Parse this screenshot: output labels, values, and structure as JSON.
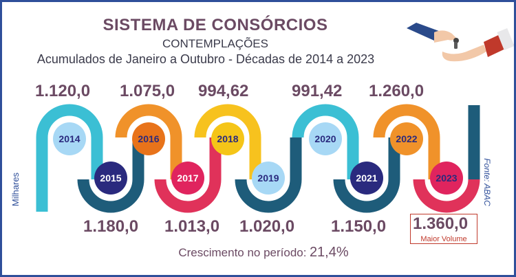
{
  "title": "SISTEMA DE CONSÓRCIOS",
  "subtitle": "CONTEMPLAÇÕES",
  "subtitle2": "Acumulados de Janeiro a Outubro - Décadas de 2014 a 2023",
  "ylabel": "Milhares",
  "source": "Fonte: ABAC",
  "growth_label": "Crescimento no período:",
  "growth_value": "21,4%",
  "max_label": "Maior Volume",
  "chart_data": {
    "type": "line",
    "title": "SISTEMA DE CONSÓRCIOS",
    "ylabel": "Milhares",
    "categories": [
      "2014",
      "2015",
      "2016",
      "2017",
      "2018",
      "2019",
      "2020",
      "2021",
      "2022",
      "2023"
    ],
    "values": [
      1120.0,
      1180.0,
      1075.0,
      1013.0,
      994.62,
      1020.0,
      991.42,
      1150.0,
      1260.0,
      1360.0
    ],
    "labels": [
      "1.120,0",
      "1.180,0",
      "1.075,0",
      "1.013,0",
      "994,62",
      "1.020,0",
      "991,42",
      "1.150,0",
      "1.260,0",
      "1.360,0"
    ],
    "colors": [
      "#3bbfd4",
      "#1e5c7a",
      "#f0922a",
      "#e0325a",
      "#f7c21e",
      "#1e5c7a",
      "#3bbfd4",
      "#1e5c7a",
      "#f0922a",
      "#e0325a"
    ],
    "circle_colors": [
      "#a7d8f5",
      "#2a2a7e",
      "#e8731a",
      "#e0245e",
      "#f5c518",
      "#a7d8f5",
      "#a7d8f5",
      "#2a2a7e",
      "#f0922a",
      "#e0245e"
    ],
    "year_text_colors": [
      "#2a2a7e",
      "#ffffff",
      "#2a2a7e",
      "#ffffff",
      "#2a2a7e",
      "#2a2a7e",
      "#2a2a7e",
      "#ffffff",
      "#2a2a7e",
      "#2a2a7e"
    ],
    "highlight": "2023"
  }
}
